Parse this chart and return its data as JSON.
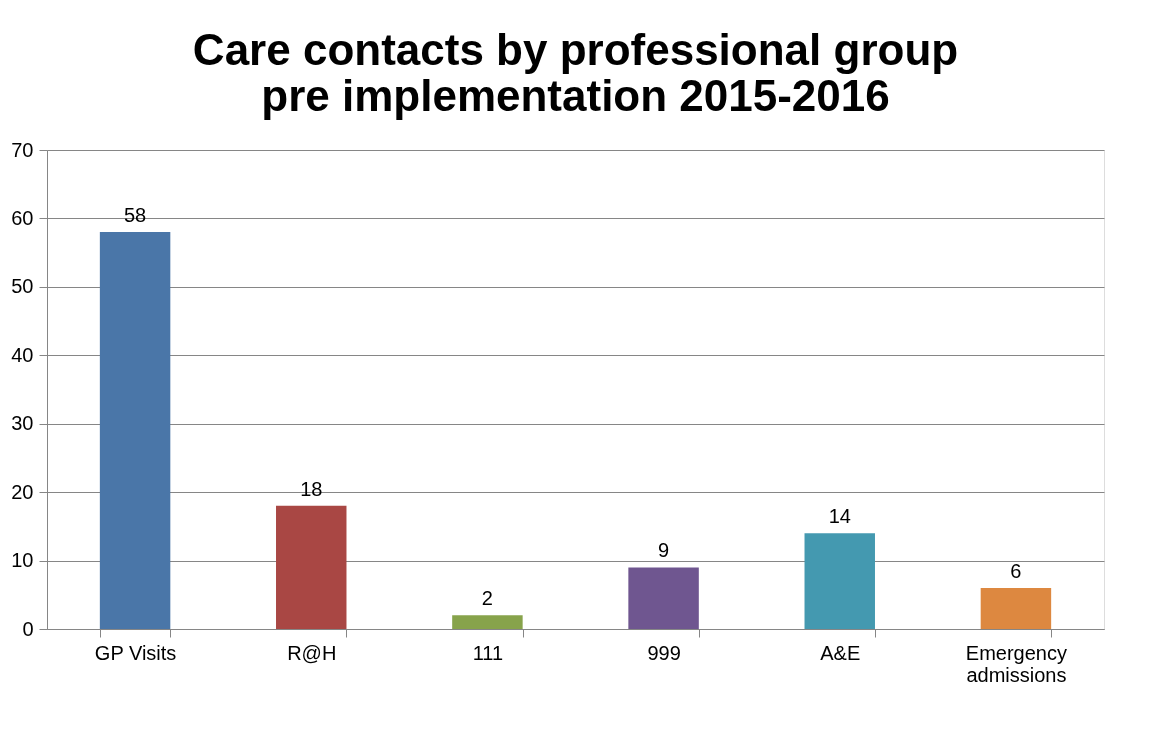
{
  "chart_data": {
    "type": "bar",
    "title": "Care contacts by professional group pre implementation 2015-2016",
    "categories": [
      "GP Visits",
      "R@H",
      "111",
      "999",
      "A&E",
      "Emergency admissions"
    ],
    "values": [
      58,
      18,
      2,
      9,
      14,
      6
    ],
    "colors": [
      "#4a76a8",
      "#a94744",
      "#87a34b",
      "#6f5690",
      "#4499b0",
      "#dd8840"
    ],
    "ylim": [
      0,
      70
    ],
    "yticks": [
      0,
      10,
      20,
      30,
      40,
      50,
      60,
      70
    ],
    "grid": "y",
    "data_labels": true,
    "legend": false
  }
}
